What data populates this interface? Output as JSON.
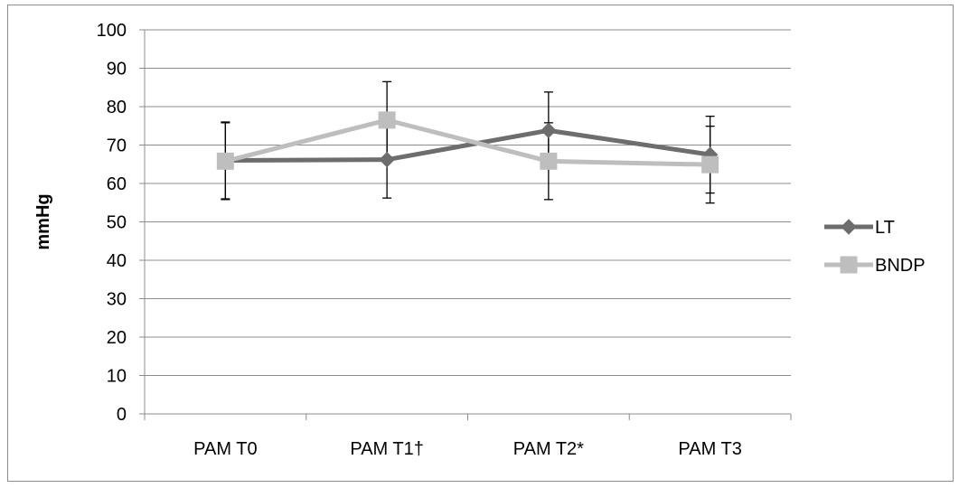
{
  "chart_data": {
    "type": "line",
    "ylabel": "mmHg",
    "xlabel": "",
    "ylim": [
      0,
      100
    ],
    "ytick_step": 10,
    "grid": true,
    "legend_position": "right",
    "categories": [
      "PAM T0",
      "PAM T1†",
      "PAM T2*",
      "PAM T3"
    ],
    "series": [
      {
        "name": "LT",
        "color": "#6d6d6d",
        "marker": "diamond",
        "values": [
          66,
          66.2,
          73.8,
          67.5
        ],
        "error": [
          10,
          10,
          10,
          10
        ]
      },
      {
        "name": "BNDP",
        "color": "#bebebe",
        "marker": "square",
        "values": [
          65.8,
          76.5,
          65.8,
          64.9
        ],
        "error": [
          10,
          10,
          10,
          10
        ]
      }
    ]
  }
}
